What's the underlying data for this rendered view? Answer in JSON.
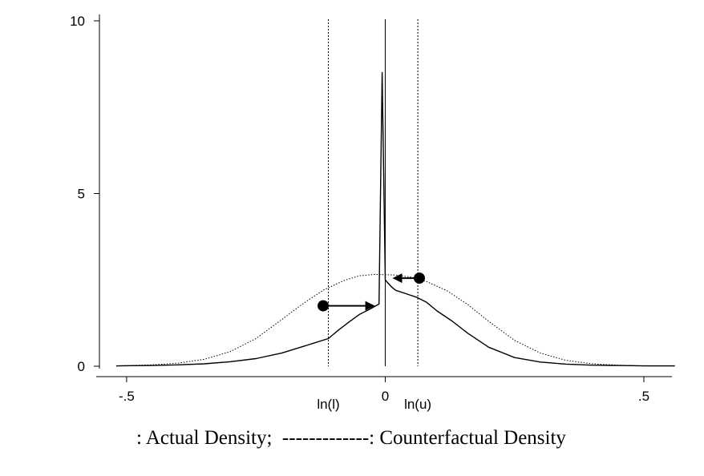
{
  "chart_data": {
    "type": "line",
    "title": "",
    "xlabel": "",
    "ylabel": "",
    "xlim": [
      -0.55,
      0.57
    ],
    "ylim": [
      0,
      10
    ],
    "x_ticks": [
      {
        "value": -0.5,
        "label": "-.5"
      },
      {
        "value": 0,
        "label": "0"
      },
      {
        "value": 0.5,
        "label": ".5"
      }
    ],
    "y_ticks": [
      {
        "value": 0,
        "label": "0"
      },
      {
        "value": 5,
        "label": "5"
      },
      {
        "value": 10,
        "label": "10"
      }
    ],
    "grid": false,
    "vertical_markers": [
      {
        "x": -0.11,
        "label": "ln(l)",
        "style": "dotted"
      },
      {
        "x": 0,
        "label": "",
        "style": "solid"
      },
      {
        "x": 0.063,
        "label": "ln(u)",
        "style": "dotted"
      }
    ],
    "series": [
      {
        "name": "Actual Density",
        "style": "solid",
        "x": [
          -0.52,
          -0.45,
          -0.4,
          -0.35,
          -0.3,
          -0.25,
          -0.2,
          -0.17,
          -0.14,
          -0.11,
          -0.09,
          -0.07,
          -0.05,
          -0.03,
          -0.012,
          -0.006,
          0.0,
          0.006,
          0.012,
          0.02,
          0.04,
          0.06,
          0.08,
          0.1,
          0.13,
          0.16,
          0.2,
          0.25,
          0.3,
          0.35,
          0.4,
          0.45,
          0.5,
          0.56
        ],
        "y": [
          0.01,
          0.02,
          0.04,
          0.07,
          0.13,
          0.22,
          0.38,
          0.52,
          0.66,
          0.8,
          1.05,
          1.28,
          1.5,
          1.65,
          1.8,
          8.5,
          2.5,
          2.4,
          2.3,
          2.2,
          2.1,
          2.0,
          1.85,
          1.6,
          1.3,
          0.95,
          0.55,
          0.25,
          0.12,
          0.06,
          0.03,
          0.02,
          0.01,
          0.01
        ]
      },
      {
        "name": "Counterfactual Density",
        "style": "dotted",
        "x": [
          -0.52,
          -0.45,
          -0.4,
          -0.35,
          -0.3,
          -0.25,
          -0.2,
          -0.16,
          -0.12,
          -0.08,
          -0.05,
          -0.02,
          0.0,
          0.02,
          0.05,
          0.08,
          0.12,
          0.16,
          0.2,
          0.25,
          0.3,
          0.35,
          0.4,
          0.45,
          0.5,
          0.56
        ],
        "y": [
          0.01,
          0.04,
          0.09,
          0.2,
          0.42,
          0.8,
          1.35,
          1.8,
          2.2,
          2.48,
          2.62,
          2.66,
          2.65,
          2.64,
          2.58,
          2.45,
          2.18,
          1.78,
          1.3,
          0.75,
          0.38,
          0.17,
          0.07,
          0.03,
          0.01,
          0.01
        ]
      }
    ],
    "annotations": [
      {
        "type": "arrow",
        "from": [
          -0.12,
          1.75
        ],
        "to": [
          -0.02,
          1.75
        ]
      },
      {
        "type": "arrow",
        "from": [
          0.066,
          2.55
        ],
        "to": [
          0.014,
          2.55
        ]
      }
    ]
  },
  "caption": {
    "solid_text": ": Actual Density;",
    "dotted_text": "-------------: Counterfactual Density"
  }
}
